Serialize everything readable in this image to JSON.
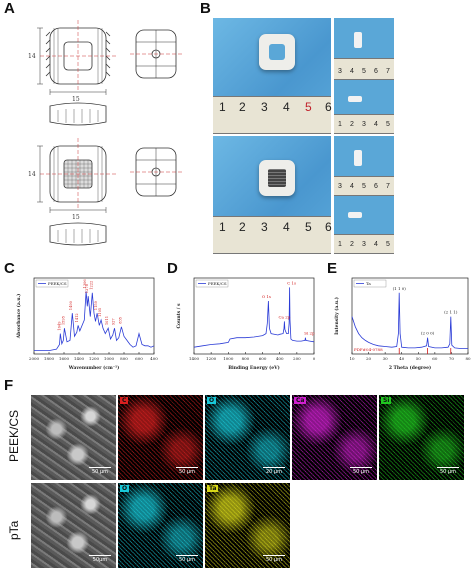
{
  "panels": {
    "a": "A",
    "b": "B",
    "c": "C",
    "d": "D",
    "e": "E",
    "f": "F"
  },
  "drawings": {
    "dim_width_top": "15",
    "dim_height_top": "14",
    "dim_width_bottom": "15",
    "dim_height_bottom": "14"
  },
  "rulers": {
    "large_top": [
      "1",
      "2",
      "3",
      "4",
      "5",
      "6"
    ],
    "large_bottom": [
      "1",
      "2",
      "3",
      "4",
      "5",
      "6"
    ],
    "small_a": [
      "3",
      "4",
      "5",
      "6",
      "7"
    ],
    "small_b": [
      "1",
      "2",
      "3",
      "4",
      "5"
    ],
    "small_c": [
      "3",
      "4",
      "5",
      "6",
      "7"
    ],
    "small_d": [
      "1",
      "2",
      "3",
      "4",
      "5"
    ]
  },
  "chart_data": [
    {
      "type": "line",
      "panel": "C",
      "legend": [
        "PEEK/CS"
      ],
      "xlabel": "Wavenumber (cm⁻¹)",
      "ylabel": "Absorbance (a.u.)",
      "xlim": [
        2000,
        400
      ],
      "xticks": [
        "2000",
        "1800",
        "1600",
        "1400",
        "1200",
        "1000",
        "800",
        "600",
        "400"
      ],
      "peak_labels": [
        "1649",
        "1595",
        "1490",
        "1412",
        "1306",
        "1278",
        "1222",
        "1159",
        "1105",
        "1011",
        "927",
        "835"
      ],
      "series": [
        {
          "name": "PEEK/CS",
          "color": "#2a3bd6",
          "x": [
            2000,
            1900,
            1800,
            1700,
            1660,
            1649,
            1630,
            1610,
            1595,
            1560,
            1520,
            1490,
            1460,
            1430,
            1412,
            1390,
            1330,
            1306,
            1290,
            1278,
            1250,
            1222,
            1200,
            1180,
            1159,
            1130,
            1105,
            1080,
            1050,
            1011,
            980,
            950,
            927,
            900,
            870,
            835,
            800,
            760,
            720,
            680,
            640,
            600,
            560,
            520,
            480,
            440,
            400
          ],
          "y": [
            0.05,
            0.05,
            0.05,
            0.07,
            0.14,
            0.3,
            0.15,
            0.2,
            0.38,
            0.18,
            0.2,
            0.6,
            0.26,
            0.32,
            0.42,
            0.34,
            0.5,
            0.92,
            0.7,
            0.85,
            0.55,
            0.9,
            0.6,
            0.48,
            0.6,
            0.42,
            0.5,
            0.38,
            0.3,
            0.38,
            0.22,
            0.28,
            0.38,
            0.2,
            0.24,
            0.4,
            0.26,
            0.2,
            0.14,
            0.1,
            0.12,
            0.3,
            0.14,
            0.12,
            0.12,
            0.1,
            0.12
          ]
        }
      ]
    },
    {
      "type": "line",
      "panel": "D",
      "legend": [
        "PEEK/CS"
      ],
      "xlabel": "Binding Energy (eV)",
      "ylabel": "Counts / s",
      "xlim": [
        1400,
        0
      ],
      "xticks": [
        "1400",
        "1200",
        "1000",
        "800",
        "600",
        "400",
        "200",
        "0"
      ],
      "peak_labels": [
        "C 1s",
        "O 1s",
        "Ca 2p",
        "Si 2p"
      ],
      "series": [
        {
          "name": "PEEK/CS",
          "color": "#2a3bd6",
          "x": [
            1400,
            1300,
            1200,
            1100,
            1000,
            980,
            900,
            800,
            700,
            600,
            560,
            545,
            532,
            520,
            500,
            420,
            400,
            360,
            350,
            345,
            340,
            320,
            300,
            290,
            285,
            280,
            270,
            250,
            200,
            150,
            105,
            100,
            95,
            50,
            0
          ],
          "y": [
            0.1,
            0.12,
            0.14,
            0.15,
            0.17,
            0.22,
            0.24,
            0.24,
            0.25,
            0.27,
            0.3,
            0.45,
            0.78,
            0.38,
            0.3,
            0.28,
            0.29,
            0.3,
            0.38,
            0.48,
            0.36,
            0.3,
            0.3,
            0.45,
            0.98,
            0.5,
            0.22,
            0.2,
            0.19,
            0.19,
            0.2,
            0.24,
            0.2,
            0.19,
            0.18
          ]
        }
      ]
    },
    {
      "type": "line",
      "panel": "E",
      "legend": [
        "Ta"
      ],
      "xlabel": "2 Theta (degree)",
      "ylabel": "Intensity (a.u.)",
      "xlim": [
        10,
        80
      ],
      "xticks": [
        "10",
        "20",
        "30",
        "40",
        "50",
        "60",
        "70",
        "80"
      ],
      "peak_labels": [
        "(1 1 0)",
        "(2 0 0)",
        "(2 1 1)"
      ],
      "reference_label": "PDF#04-0788",
      "reference_x": [
        38.5,
        55.6,
        69.6
      ],
      "series": [
        {
          "name": "Ta",
          "color": "#2a3bd6",
          "x": [
            10,
            12,
            14,
            16,
            18,
            20,
            23,
            26,
            30,
            34,
            37,
            38,
            38.5,
            39,
            40,
            44,
            48,
            52,
            55,
            55.6,
            56.2,
            60,
            64,
            68,
            69,
            69.6,
            70.2,
            72,
            76,
            80
          ],
          "y": [
            0.55,
            0.4,
            0.3,
            0.24,
            0.2,
            0.17,
            0.14,
            0.12,
            0.11,
            0.1,
            0.11,
            0.3,
            0.9,
            0.3,
            0.1,
            0.09,
            0.09,
            0.1,
            0.12,
            0.24,
            0.11,
            0.09,
            0.09,
            0.1,
            0.15,
            0.55,
            0.13,
            0.09,
            0.08,
            0.08
          ]
        }
      ]
    }
  ],
  "eds": {
    "row1_label": "PEEK/CS",
    "row2_label": "pTa",
    "row1_tiles": [
      {
        "tag": "",
        "color": "#8a8a8a",
        "scale": "50 μm"
      },
      {
        "tag": "C",
        "color": "#d82020",
        "scale": "50 μm"
      },
      {
        "tag": "O",
        "color": "#18c8d8",
        "scale": "20 μm"
      },
      {
        "tag": "Ca",
        "color": "#d020d0",
        "scale": "50 μm"
      },
      {
        "tag": "Si",
        "color": "#20c820",
        "scale": "50 μm"
      }
    ],
    "row2_tiles": [
      {
        "tag": "",
        "color": "#8a8a8a",
        "scale": "50μm"
      },
      {
        "tag": "O",
        "color": "#18c8d8",
        "scale": "50 μm"
      },
      {
        "tag": "Ta",
        "color": "#d8d818",
        "scale": "50 μm"
      }
    ]
  }
}
